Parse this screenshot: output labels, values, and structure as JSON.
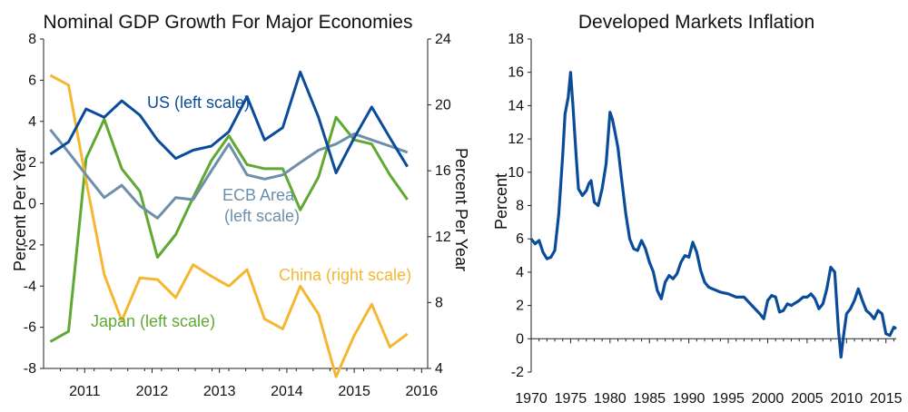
{
  "chart_data": [
    {
      "type": "line",
      "title": "Nominal GDP Growth For Major Economies",
      "ylabel": "Percent Per Year",
      "y2label": "Percent Per Year",
      "ylim": [
        -8,
        8
      ],
      "y2lim": [
        4,
        24
      ],
      "yticks": [
        "8",
        "6",
        "4",
        "2",
        "0",
        "-2",
        "-4",
        "-6",
        "-8"
      ],
      "y2ticks": [
        "24",
        "20",
        "16",
        "12",
        "8",
        "4"
      ],
      "xlim": [
        2010.5,
        2016.2
      ],
      "xticks": [
        "2011",
        "2012",
        "2013",
        "2014",
        "2015",
        "2016"
      ],
      "x": [
        2010.6,
        2010.87,
        2011.13,
        2011.4,
        2011.66,
        2011.93,
        2012.19,
        2012.46,
        2012.72,
        2012.99,
        2013.25,
        2013.52,
        2013.78,
        2014.05,
        2014.31,
        2014.58,
        2014.84,
        2015.11,
        2015.37,
        2015.64,
        2015.9
      ],
      "series": [
        {
          "name": "US (left scale)",
          "label": "US (left scale)",
          "axis": "left",
          "color": "#0a4c9a",
          "values": [
            2.4,
            3.0,
            4.6,
            4.2,
            5.0,
            4.3,
            3.1,
            2.2,
            2.6,
            2.8,
            3.5,
            5.2,
            3.1,
            3.7,
            6.4,
            4.2,
            1.5,
            3.2,
            4.7,
            3.2,
            1.8
          ]
        },
        {
          "name": "ECB Area (left scale)",
          "label": "ECB Area\n(left scale)",
          "axis": "left",
          "color": "#6e8fac",
          "values": [
            3.6,
            2.5,
            1.4,
            0.3,
            0.9,
            -0.1,
            -0.7,
            0.3,
            0.2,
            1.6,
            2.9,
            1.4,
            1.2,
            1.4,
            2.0,
            2.6,
            2.9,
            3.4,
            3.1,
            2.8,
            2.5
          ]
        },
        {
          "name": "Japan (left scale)",
          "label": "Japan (left scale)",
          "axis": "left",
          "color": "#5fa932",
          "values": [
            -6.7,
            -6.2,
            2.2,
            4.1,
            1.7,
            0.6,
            -2.6,
            -1.5,
            0.3,
            2.1,
            3.3,
            1.9,
            1.7,
            1.7,
            -0.3,
            1.3,
            4.2,
            3.1,
            2.9,
            1.4,
            0.2
          ]
        },
        {
          "name": "China (right scale)",
          "label": "China (right scale)",
          "axis": "right",
          "color": "#f5b731",
          "values": [
            21.8,
            21.2,
            15.4,
            9.7,
            6.9,
            9.5,
            9.4,
            8.3,
            10.3,
            9.6,
            9.0,
            10.0,
            7.0,
            6.4,
            9.0,
            7.3,
            3.5,
            6.0,
            7.9,
            5.3,
            6.1
          ]
        }
      ]
    },
    {
      "type": "line",
      "title": "Developed Markets Inflation",
      "ylabel": "Percent",
      "ylim": [
        -2,
        18
      ],
      "yticks": [
        "18",
        "16",
        "14",
        "12",
        "10",
        "8",
        "6",
        "4",
        "2",
        "0",
        "-2"
      ],
      "xlim": [
        1970,
        2016.3
      ],
      "xticks": [
        "1970",
        "1975",
        "1980",
        "1985",
        "1990",
        "1995",
        "2000",
        "2005",
        "2010",
        "2015"
      ],
      "series": [
        {
          "name": "Developed Markets Inflation",
          "color": "#0a4c9a",
          "x": [
            1970,
            1970.5,
            1971,
            1971.5,
            1972,
            1972.5,
            1973,
            1973.5,
            1974,
            1974.3,
            1974.7,
            1975,
            1975.3,
            1975.7,
            1976,
            1976.5,
            1977,
            1977.3,
            1977.6,
            1978,
            1978.5,
            1979,
            1979.5,
            1980,
            1980.3,
            1980.6,
            1981,
            1981.5,
            1982,
            1982.5,
            1983,
            1983.5,
            1984,
            1984.5,
            1985,
            1985.5,
            1986,
            1986.5,
            1987,
            1987.5,
            1988,
            1988.5,
            1989,
            1989.5,
            1990,
            1990.5,
            1991,
            1991.5,
            1992,
            1992.5,
            1993,
            1994,
            1995,
            1996,
            1997,
            1998,
            1999,
            1999.5,
            2000,
            2000.5,
            2001,
            2001.5,
            2002,
            2002.5,
            2003,
            2004,
            2004.5,
            2005,
            2005.5,
            2006,
            2006.5,
            2007,
            2007.5,
            2008,
            2008.5,
            2009,
            2009.3,
            2009.6,
            2010,
            2010.5,
            2011,
            2011.5,
            2012,
            2012.5,
            2013,
            2013.5,
            2014,
            2014.5,
            2015,
            2015.5,
            2016,
            2016.3
          ],
          "values": [
            6.0,
            5.7,
            5.9,
            5.2,
            4.8,
            4.9,
            5.3,
            7.5,
            11.0,
            13.5,
            14.5,
            16.0,
            14.0,
            11.0,
            9.0,
            8.6,
            8.9,
            9.3,
            9.5,
            8.2,
            8.0,
            9.0,
            10.5,
            13.6,
            13.2,
            12.5,
            11.5,
            9.5,
            7.5,
            6.0,
            5.4,
            5.3,
            5.9,
            5.4,
            4.6,
            4.0,
            2.9,
            2.4,
            3.4,
            3.8,
            3.6,
            3.9,
            4.6,
            5.0,
            4.9,
            5.8,
            5.2,
            4.1,
            3.4,
            3.1,
            3.0,
            2.8,
            2.7,
            2.5,
            2.5,
            2.0,
            1.5,
            1.2,
            2.3,
            2.6,
            2.5,
            1.6,
            1.7,
            2.1,
            2.0,
            2.3,
            2.5,
            2.5,
            2.7,
            2.4,
            1.8,
            2.1,
            3.0,
            4.3,
            4.0,
            0.4,
            -1.1,
            0.1,
            1.5,
            1.8,
            2.3,
            3.0,
            2.3,
            1.7,
            1.5,
            1.2,
            1.7,
            1.5,
            0.3,
            0.2,
            0.7,
            0.6
          ]
        }
      ]
    }
  ]
}
